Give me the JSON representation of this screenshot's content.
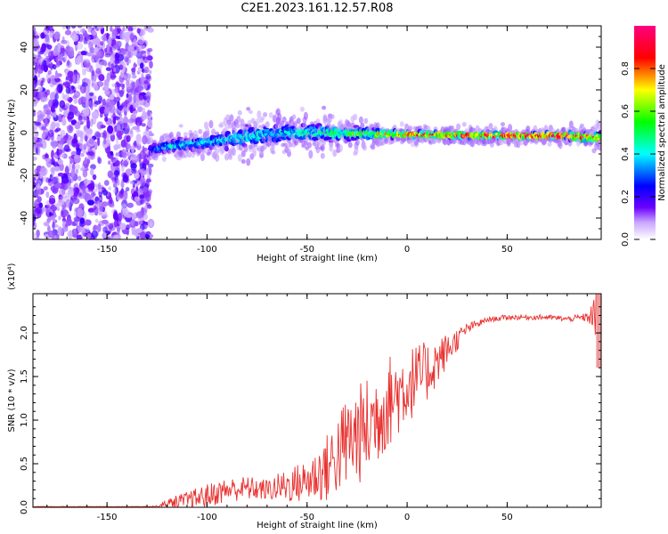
{
  "title": "C2E1.2023.161.12.57.R08",
  "colorbar": {
    "label": "Normalized spectral amplitude",
    "range": [
      0,
      1
    ],
    "ticks": [
      0.0,
      0.2,
      0.4,
      0.6,
      0.8
    ],
    "tick_labels": [
      "0.0",
      "0.2",
      "0.4",
      "0.6",
      "0.8"
    ]
  },
  "chart_data": [
    {
      "type": "heatmap",
      "xlabel": "Height of straight line (km)",
      "ylabel": "Frequency (Hz)",
      "xlim": [
        -187,
        97
      ],
      "ylim": [
        -50,
        50
      ],
      "x_ticks": [
        -150,
        -100,
        -50,
        0,
        50
      ],
      "x_tick_labels": [
        "-150",
        "-100",
        "-50",
        "0",
        "50"
      ],
      "y_ticks": [
        -40,
        -20,
        0,
        20,
        40
      ],
      "y_tick_labels": [
        "-40",
        "-20",
        "0",
        "20",
        "40"
      ],
      "colormap": "rainbow (white-purple-blue-cyan-green-yellow-red)",
      "noise_region_x": [
        -187,
        -128
      ],
      "ridge": {
        "x": [
          -128,
          -120,
          -100,
          -80,
          -60,
          -40,
          -20,
          0,
          20,
          50,
          80,
          95
        ],
        "center_hz": [
          -8,
          -6.5,
          -4.5,
          -2,
          0,
          0,
          -0.5,
          -1,
          -1.2,
          -1.5,
          -1.5,
          -2.5
        ],
        "width_hz": [
          3,
          3,
          4,
          6,
          5,
          5,
          3,
          2,
          2,
          2,
          2,
          3
        ],
        "amplitude": [
          0.25,
          0.4,
          0.35,
          0.4,
          0.4,
          0.45,
          0.6,
          0.75,
          0.8,
          0.85,
          0.9,
          0.8
        ]
      }
    },
    {
      "type": "line",
      "xlabel": "Height of straight line (km)",
      "ylabel": "SNR (10 * v/v)",
      "y_multiplier_label": "(x10⁴)",
      "xlim": [
        -187,
        97
      ],
      "ylim": [
        0,
        2.45
      ],
      "x_ticks": [
        -150,
        -100,
        -50,
        0,
        50
      ],
      "x_tick_labels": [
        "-150",
        "-100",
        "-50",
        "0",
        "50"
      ],
      "y_ticks": [
        0,
        0.5,
        1.0,
        1.5,
        2.0
      ],
      "y_tick_labels": [
        "0.0",
        "0.5",
        "1.0",
        "1.5",
        "2.0"
      ],
      "color": "#e8312f",
      "series": [
        {
          "x": [
            -187,
            -150,
            -125,
            -120,
            -110,
            -100,
            -90,
            -80,
            -70,
            -60,
            -50,
            -40,
            -30,
            -20,
            -10,
            0,
            10,
            20,
            30,
            40,
            50,
            60,
            70,
            80,
            90,
            95
          ],
          "base": [
            0.0,
            0.0,
            0.01,
            0.04,
            0.08,
            0.13,
            0.2,
            0.22,
            0.2,
            0.25,
            0.3,
            0.45,
            0.75,
            0.9,
            1.2,
            1.4,
            1.55,
            1.8,
            2.05,
            2.15,
            2.18,
            2.18,
            2.18,
            2.16,
            2.18,
            2.2
          ],
          "spread": [
            0.0,
            0.0,
            0.01,
            0.06,
            0.1,
            0.14,
            0.14,
            0.14,
            0.12,
            0.2,
            0.25,
            0.4,
            0.55,
            0.6,
            0.55,
            0.45,
            0.35,
            0.2,
            0.06,
            0.03,
            0.03,
            0.03,
            0.03,
            0.03,
            0.05,
            0.3
          ]
        }
      ]
    }
  ]
}
